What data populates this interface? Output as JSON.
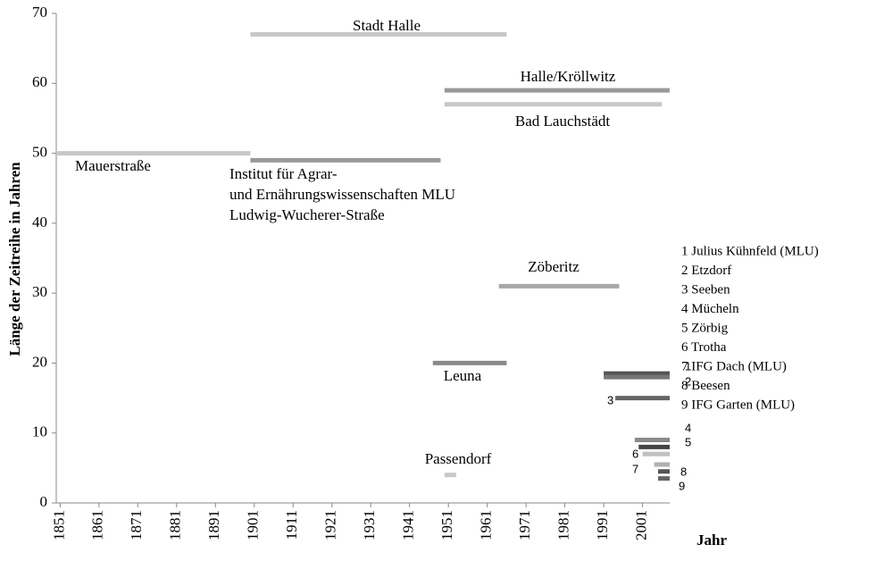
{
  "chart_data": {
    "type": "segment",
    "y_label": "Länge der Zeitreihe in Jahren",
    "x_label": "Jahr",
    "xlim": [
      1850,
      2008
    ],
    "xticks": [
      1851,
      1861,
      1871,
      1881,
      1891,
      1901,
      1911,
      1921,
      1931,
      1941,
      1951,
      1961,
      1971,
      1981,
      1991,
      2001
    ],
    "ylim": [
      0,
      70
    ],
    "yticks": [
      0,
      10,
      20,
      30,
      40,
      50,
      60,
      70
    ],
    "series": [
      {
        "label": [
          "Mauerstraße"
        ],
        "start": 1850,
        "end": 1900,
        "values": [
          50
        ],
        "color": "#c8c8c8"
      },
      {
        "label": [
          "Stadt Halle"
        ],
        "start": 1900,
        "end": 1966,
        "values": [
          67
        ],
        "color": "#c8c8c8"
      },
      {
        "label": [
          "Institut für Agrar-",
          "und Ernährungswissenschaften MLU",
          "Ludwig-Wucherer-Straße"
        ],
        "start": 1900,
        "end": 1949,
        "values": [
          49
        ],
        "color": "#9a9a9a"
      },
      {
        "label": [
          "Halle/Kröllwitz"
        ],
        "start": 1950,
        "end": 2008,
        "values": [
          59
        ],
        "color": "#9a9a9a"
      },
      {
        "label": [
          "Bad Lauchstädt"
        ],
        "start": 1950,
        "end": 2006,
        "values": [
          57
        ],
        "color": "#c8c8c8"
      },
      {
        "label": [
          "Zöberitz"
        ],
        "start": 1964,
        "end": 1995,
        "values": [
          31
        ],
        "color": "#a8a8a8"
      },
      {
        "label": [
          "Leuna"
        ],
        "start": 1947,
        "end": 1966,
        "values": [
          20
        ],
        "color": "#8a8a8a"
      },
      {
        "label": [
          "Passendorf"
        ],
        "start": 1950,
        "end": 1953,
        "values": [
          4
        ],
        "color": "#c8c8c8"
      },
      {
        "label": [
          "1"
        ],
        "start": 1991,
        "end": 2008,
        "values": [
          18.5
        ],
        "color": "#555555"
      },
      {
        "label": [
          "2"
        ],
        "start": 1991,
        "end": 2008,
        "values": [
          18
        ],
        "color": "#777777"
      },
      {
        "label": [
          "3"
        ],
        "start": 1994,
        "end": 2008,
        "values": [
          15
        ],
        "color": "#666666"
      },
      {
        "label": [
          "4"
        ],
        "start": 1999,
        "end": 2008,
        "values": [
          9
        ],
        "color": "#8a8a8a"
      },
      {
        "label": [
          "5"
        ],
        "start": 2000,
        "end": 2008,
        "values": [
          8
        ],
        "color": "#444444"
      },
      {
        "label": [
          "6"
        ],
        "start": 2001,
        "end": 2008,
        "values": [
          7
        ],
        "color": "#c0c0c0"
      },
      {
        "label": [
          "7"
        ],
        "start": 2004,
        "end": 2008,
        "values": [
          5.5
        ],
        "color": "#b0b0b0"
      },
      {
        "label": [
          "8"
        ],
        "start": 2005,
        "end": 2008,
        "values": [
          4.5
        ],
        "color": "#555555"
      },
      {
        "label": [
          "9"
        ],
        "start": 2005,
        "end": 2008,
        "values": [
          3.5
        ],
        "color": "#666666"
      }
    ],
    "key": [
      "1 Julius Kühnfeld (MLU)",
      "2 Etzdorf",
      "3 Seeben",
      "4 Mücheln",
      "5 Zörbig",
      "6 Trotha",
      "7 IFG Dach (MLU)",
      "8 Beesen",
      "9 IFG Garten (MLU)"
    ]
  }
}
